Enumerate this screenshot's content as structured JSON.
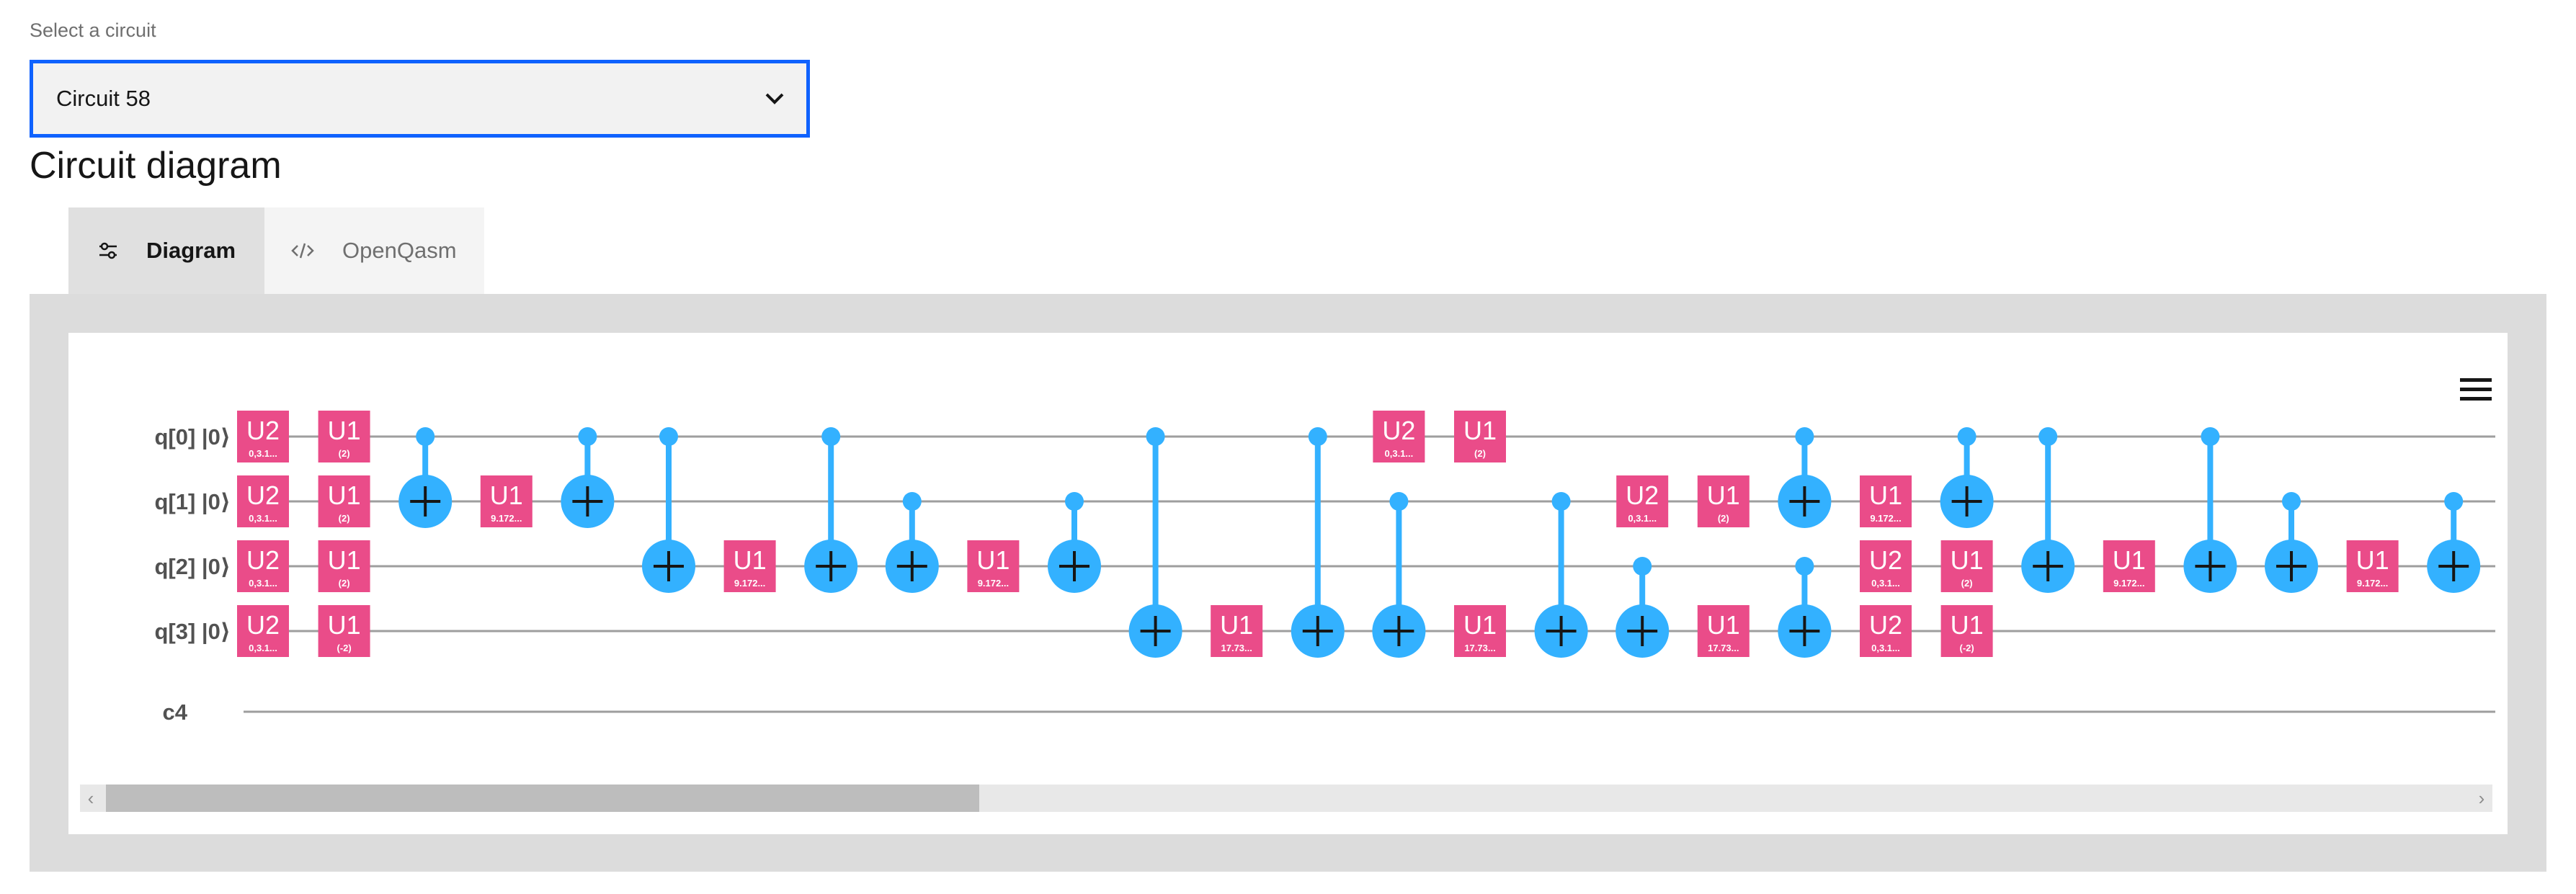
{
  "selector": {
    "label": "Select a circuit",
    "value": "Circuit 58"
  },
  "section_title": "Circuit diagram",
  "tabs": [
    {
      "label": "Diagram",
      "icon": "settings-adjust-icon",
      "active": true
    },
    {
      "label": "OpenQasm",
      "icon": "code-icon",
      "active": false
    }
  ],
  "colors": {
    "gate": "#ea4c89",
    "cnot": "#33b1ff",
    "focus": "#0f62fe",
    "wire": "#9e9e9e"
  },
  "circuit": {
    "qubits": [
      {
        "name": "q[0]",
        "init": "|0⟩"
      },
      {
        "name": "q[1]",
        "init": "|0⟩"
      },
      {
        "name": "q[2]",
        "init": "|0⟩"
      },
      {
        "name": "q[3]",
        "init": "|0⟩"
      }
    ],
    "classical": [
      {
        "name": "c4"
      }
    ],
    "operations": [
      {
        "type": "gate",
        "col": 0,
        "qubit": 0,
        "name": "U2",
        "param": "0,3.1..."
      },
      {
        "type": "gate",
        "col": 0,
        "qubit": 1,
        "name": "U2",
        "param": "0,3.1..."
      },
      {
        "type": "gate",
        "col": 0,
        "qubit": 2,
        "name": "U2",
        "param": "0,3.1..."
      },
      {
        "type": "gate",
        "col": 0,
        "qubit": 3,
        "name": "U2",
        "param": "0,3.1..."
      },
      {
        "type": "gate",
        "col": 1,
        "qubit": 0,
        "name": "U1",
        "param": "(2)"
      },
      {
        "type": "gate",
        "col": 1,
        "qubit": 1,
        "name": "U1",
        "param": "(2)"
      },
      {
        "type": "gate",
        "col": 1,
        "qubit": 2,
        "name": "U1",
        "param": "(2)"
      },
      {
        "type": "gate",
        "col": 1,
        "qubit": 3,
        "name": "U1",
        "param": "(-2)"
      },
      {
        "type": "cx",
        "col": 2,
        "control": 0,
        "target": 1
      },
      {
        "type": "gate",
        "col": 3,
        "qubit": 1,
        "name": "U1",
        "param": "9.172..."
      },
      {
        "type": "cx",
        "col": 4,
        "control": 0,
        "target": 1
      },
      {
        "type": "cx",
        "col": 5,
        "control": 0,
        "target": 2
      },
      {
        "type": "gate",
        "col": 6,
        "qubit": 2,
        "name": "U1",
        "param": "9.172..."
      },
      {
        "type": "cx",
        "col": 7,
        "control": 0,
        "target": 2
      },
      {
        "type": "cx",
        "col": 8,
        "control": 1,
        "target": 2
      },
      {
        "type": "gate",
        "col": 9,
        "qubit": 2,
        "name": "U1",
        "param": "9.172..."
      },
      {
        "type": "cx",
        "col": 10,
        "control": 1,
        "target": 2
      },
      {
        "type": "cx",
        "col": 11,
        "control": 0,
        "target": 3
      },
      {
        "type": "gate",
        "col": 12,
        "qubit": 3,
        "name": "U1",
        "param": "17.73..."
      },
      {
        "type": "cx",
        "col": 13,
        "control": 0,
        "target": 3
      },
      {
        "type": "gate",
        "col": 14,
        "qubit": 0,
        "name": "U2",
        "param": "0,3.1..."
      },
      {
        "type": "cx",
        "col": 14,
        "control": 1,
        "target": 3
      },
      {
        "type": "gate",
        "col": 15,
        "qubit": 0,
        "name": "U1",
        "param": "(2)"
      },
      {
        "type": "gate",
        "col": 15,
        "qubit": 3,
        "name": "U1",
        "param": "17.73..."
      },
      {
        "type": "cx",
        "col": 16,
        "control": 1,
        "target": 3
      },
      {
        "type": "gate",
        "col": 17,
        "qubit": 1,
        "name": "U2",
        "param": "0,3.1..."
      },
      {
        "type": "cx",
        "col": 17,
        "control": 2,
        "target": 3
      },
      {
        "type": "gate",
        "col": 18,
        "qubit": 1,
        "name": "U1",
        "param": "(2)"
      },
      {
        "type": "gate",
        "col": 18,
        "qubit": 3,
        "name": "U1",
        "param": "17.73..."
      },
      {
        "type": "cx",
        "col": 19,
        "control": 0,
        "target": 1
      },
      {
        "type": "cx",
        "col": 19,
        "control": 2,
        "target": 3
      },
      {
        "type": "gate",
        "col": 20,
        "qubit": 1,
        "name": "U1",
        "param": "9.172..."
      },
      {
        "type": "gate",
        "col": 20,
        "qubit": 2,
        "name": "U2",
        "param": "0,3.1..."
      },
      {
        "type": "gate",
        "col": 20,
        "qubit": 3,
        "name": "U2",
        "param": "0,3.1..."
      },
      {
        "type": "cx",
        "col": 21,
        "control": 0,
        "target": 1
      },
      {
        "type": "gate",
        "col": 21,
        "qubit": 2,
        "name": "U1",
        "param": "(2)"
      },
      {
        "type": "gate",
        "col": 21,
        "qubit": 3,
        "name": "U1",
        "param": "(-2)"
      },
      {
        "type": "cx",
        "col": 22,
        "control": 0,
        "target": 2
      },
      {
        "type": "gate",
        "col": 23,
        "qubit": 2,
        "name": "U1",
        "param": "9.172..."
      },
      {
        "type": "cx",
        "col": 24,
        "control": 0,
        "target": 2
      },
      {
        "type": "cx",
        "col": 25,
        "control": 1,
        "target": 2
      },
      {
        "type": "gate",
        "col": 26,
        "qubit": 2,
        "name": "U1",
        "param": "9.172..."
      },
      {
        "type": "cx",
        "col": 27,
        "control": 1,
        "target": 2
      }
    ]
  },
  "scroll": {
    "position": 0,
    "visible_fraction": 0.37
  }
}
